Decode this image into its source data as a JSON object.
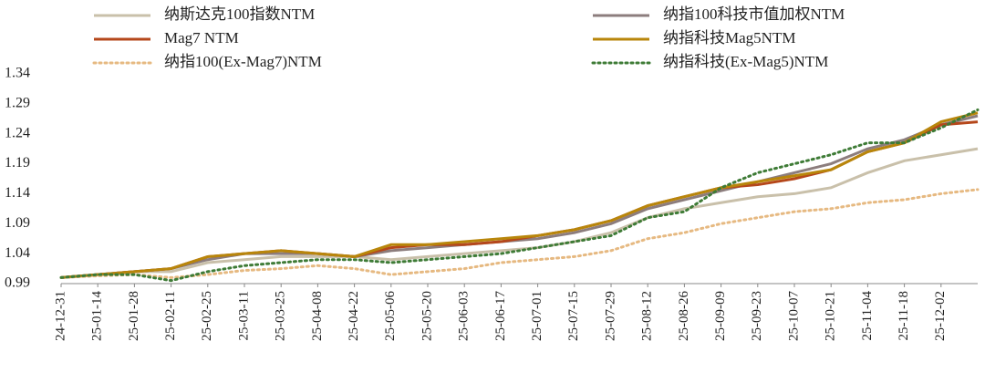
{
  "chart_data": {
    "type": "line",
    "x": [
      "24-12-31",
      "25-01-14",
      "25-01-28",
      "25-02-11",
      "25-02-25",
      "25-03-11",
      "25-03-25",
      "25-04-08",
      "25-04-22",
      "25-05-06",
      "25-05-20",
      "25-06-03",
      "25-06-17",
      "25-07-01",
      "25-07-15",
      "25-07-29",
      "25-08-12",
      "25-08-26",
      "25-09-09",
      "25-09-23",
      "25-10-07",
      "25-10-21",
      "25-11-04",
      "25-11-18",
      "25-12-02",
      null
    ],
    "ylim": [
      0.99,
      1.34
    ],
    "yticks": [
      0.99,
      1.04,
      1.09,
      1.14,
      1.19,
      1.24,
      1.29,
      1.34
    ],
    "series": [
      {
        "name": "纳斯达克100指数NTM",
        "color": "#c9c0aa",
        "style": "solid",
        "values": [
          1.0,
          1.005,
          1.01,
          1.01,
          1.025,
          1.03,
          1.035,
          1.035,
          1.035,
          1.03,
          1.035,
          1.04,
          1.045,
          1.05,
          1.06,
          1.075,
          1.1,
          1.115,
          1.125,
          1.135,
          1.14,
          1.15,
          1.175,
          1.195,
          1.205,
          1.215
        ]
      },
      {
        "name": "纳指100科技市值加权NTM",
        "color": "#8c7d7d",
        "style": "solid",
        "values": [
          1.0,
          1.005,
          1.01,
          1.015,
          1.03,
          1.04,
          1.04,
          1.04,
          1.035,
          1.045,
          1.05,
          1.055,
          1.06,
          1.065,
          1.075,
          1.09,
          1.115,
          1.13,
          1.145,
          1.16,
          1.175,
          1.19,
          1.215,
          1.23,
          1.255,
          1.27
        ]
      },
      {
        "name": "Mag7 NTM",
        "color": "#b5471b",
        "style": "solid",
        "values": [
          1.0,
          1.005,
          1.01,
          1.015,
          1.035,
          1.04,
          1.045,
          1.04,
          1.035,
          1.05,
          1.055,
          1.055,
          1.06,
          1.07,
          1.08,
          1.095,
          1.12,
          1.135,
          1.15,
          1.155,
          1.165,
          1.18,
          1.21,
          1.225,
          1.255,
          1.26
        ]
      },
      {
        "name": "纳指科技Mag5NTM",
        "color": "#b8860b",
        "style": "solid",
        "values": [
          1.0,
          1.005,
          1.01,
          1.015,
          1.035,
          1.04,
          1.045,
          1.04,
          1.035,
          1.055,
          1.055,
          1.06,
          1.065,
          1.07,
          1.08,
          1.095,
          1.12,
          1.135,
          1.15,
          1.16,
          1.17,
          1.18,
          1.21,
          1.225,
          1.26,
          1.275
        ]
      },
      {
        "name": "纳指100(Ex-Mag7)NTM",
        "color": "#e6b981",
        "style": "dotted",
        "values": [
          1.0,
          1.003,
          1.005,
          1.0,
          1.005,
          1.012,
          1.015,
          1.02,
          1.015,
          1.005,
          1.01,
          1.015,
          1.025,
          1.03,
          1.035,
          1.045,
          1.065,
          1.075,
          1.09,
          1.1,
          1.11,
          1.115,
          1.125,
          1.13,
          1.14,
          1.147
        ]
      },
      {
        "name": "纳指科技(Ex-Mag5)NTM",
        "color": "#3e7b36",
        "style": "dotted",
        "values": [
          1.0,
          1.005,
          1.005,
          0.995,
          1.01,
          1.02,
          1.025,
          1.03,
          1.03,
          1.025,
          1.03,
          1.035,
          1.04,
          1.05,
          1.06,
          1.07,
          1.1,
          1.11,
          1.15,
          1.175,
          1.19,
          1.205,
          1.225,
          1.225,
          1.25,
          1.28
        ]
      }
    ]
  }
}
